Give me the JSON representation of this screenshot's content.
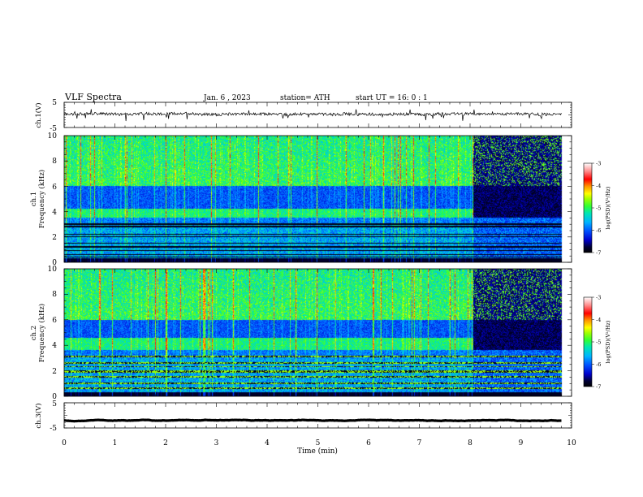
{
  "header": {
    "title": "VLF  Spectra",
    "date": "Jan. 6  , 2023",
    "station": "station= ATH",
    "start": "start  UT  =   16: 0   : 1"
  },
  "chart_data": [
    {
      "type": "line",
      "panel": "ch1-waveform",
      "ylabel": "ch.1(V)",
      "yticks": [
        "5",
        "-5"
      ],
      "ylim": [
        -5,
        5
      ],
      "x_range_min": [
        0,
        9.8
      ],
      "baseline_V": 0.3,
      "color": "#000000"
    },
    {
      "type": "heatmap",
      "panel": "ch1-spectrogram",
      "ylabel": "ch.1\nFrequency  (kHz)",
      "yticks": [
        "0",
        "2",
        "4",
        "6",
        "8",
        "10"
      ],
      "ylim_kHz": [
        0,
        10
      ],
      "x_range_min": [
        0,
        9.8
      ],
      "quiet_band_kHz": [
        4.2,
        5.8
      ],
      "hiss_band_kHz": [
        3.5,
        4.2
      ],
      "low_freq_lines_kHz": [
        0.4,
        0.6,
        0.9,
        1.2,
        1.5,
        2.0,
        2.2,
        2.8,
        3.0
      ],
      "regime_change_min": 8.05,
      "colorbar": {
        "label": "log(PSD)(V²/Hz)",
        "ticks": [
          "-3",
          "-4",
          "-5",
          "-6",
          "-7"
        ],
        "range": [
          -7,
          -3
        ]
      }
    },
    {
      "type": "heatmap",
      "panel": "ch2-spectrogram",
      "ylabel": "ch.2\nFrequency  (kHz)",
      "yticks": [
        "0",
        "2",
        "4",
        "6",
        "8",
        "10"
      ],
      "ylim_kHz": [
        0,
        10
      ],
      "x_range_min": [
        0,
        9.8
      ],
      "quiet_band_kHz": [
        4.6,
        6.0
      ],
      "hiss_band_kHz": [
        3.6,
        4.2
      ],
      "low_freq_lines_kHz": [
        0.6,
        1.0,
        1.5,
        1.9,
        2.0,
        2.3,
        2.6,
        3.1
      ],
      "regime_change_min": 8.05,
      "colorbar": {
        "label": "log(PSD)(V²/Hz)",
        "ticks": [
          "-3",
          "-4",
          "-5",
          "-6",
          "-7"
        ],
        "range": [
          -7,
          -3
        ]
      }
    },
    {
      "type": "line",
      "panel": "ch3-waveform",
      "ylabel": "ch.3(V)",
      "yticks": [
        "5",
        "-5"
      ],
      "ylim": [
        -5,
        5
      ],
      "x_range_min": [
        0,
        9.8
      ],
      "baseline_V": -2.0,
      "color": "#000000"
    }
  ],
  "xaxis": {
    "label": "Time  (min)",
    "ticks": [
      "0",
      "1",
      "2",
      "3",
      "4",
      "5",
      "6",
      "7",
      "8",
      "9",
      "10"
    ],
    "range": [
      0,
      10
    ]
  }
}
